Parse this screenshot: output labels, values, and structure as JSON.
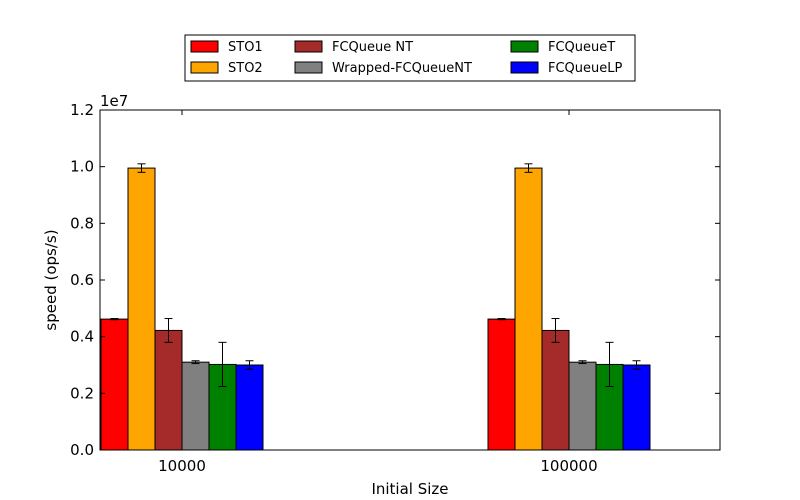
{
  "chart_data": {
    "type": "bar",
    "xlabel": "Initial Size",
    "ylabel": "speed (ops/s)",
    "y_multiplier_label": "1e7",
    "y_scale": 10000000,
    "ylim": [
      0,
      12000000
    ],
    "yticks": [
      0,
      2000000,
      4000000,
      6000000,
      8000000,
      10000000,
      12000000
    ],
    "ytick_labels": [
      "0.0",
      "0.2",
      "0.4",
      "0.6",
      "0.8",
      "1.0",
      "1.2"
    ],
    "categories": [
      "10000",
      "100000"
    ],
    "grid": false,
    "legend_placement": "top-center",
    "series": [
      {
        "name": "STO1",
        "color": "#ff0000",
        "values": [
          4620000,
          4620000
        ],
        "error": [
          20000,
          20000
        ]
      },
      {
        "name": "STO2",
        "color": "#ffa500",
        "values": [
          9950000,
          9950000
        ],
        "error": [
          150000,
          150000
        ]
      },
      {
        "name": "FCQueue NT",
        "color": "#a52a2a",
        "values": [
          4220000,
          4220000
        ],
        "error": [
          420000,
          420000
        ]
      },
      {
        "name": "Wrapped-FCQueueNT",
        "color": "#808080",
        "values": [
          3100000,
          3100000
        ],
        "error": [
          50000,
          50000
        ]
      },
      {
        "name": "FCQueueT",
        "color": "#008000",
        "values": [
          3020000,
          3020000
        ],
        "error": [
          780000,
          780000
        ]
      },
      {
        "name": "FCQueueLP",
        "color": "#0000ff",
        "values": [
          3000000,
          3000000
        ],
        "error": [
          150000,
          150000
        ]
      }
    ]
  }
}
